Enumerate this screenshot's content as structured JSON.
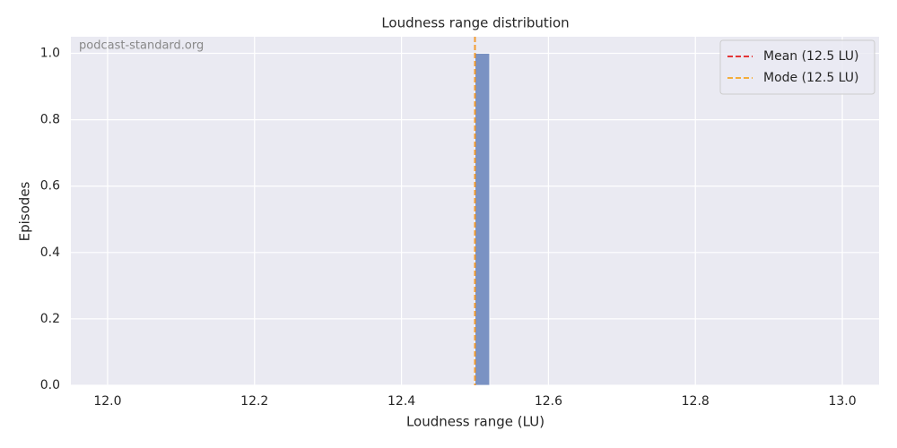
{
  "chart_data": {
    "type": "histogram",
    "title": "Loudness range distribution",
    "xlabel": "Loudness range (LU)",
    "ylabel": "Episodes",
    "watermark": "podcast-standard.org",
    "bins": [
      12.5,
      12.52
    ],
    "counts": [
      1
    ],
    "color": "#7a92c3",
    "xlim": [
      11.95,
      13.05
    ],
    "ylim": [
      0,
      1.05
    ],
    "xticks": [
      {
        "value": 12,
        "label": "12.0"
      },
      {
        "value": 12.2,
        "label": "12.2"
      },
      {
        "value": 12.4,
        "label": "12.4"
      },
      {
        "value": 12.6,
        "label": "12.6"
      },
      {
        "value": 12.8,
        "label": "12.8"
      },
      {
        "value": 13,
        "label": "13.0"
      }
    ],
    "yticks": [
      {
        "value": 0,
        "label": "0.0"
      },
      {
        "value": 0.2,
        "label": "0.2"
      },
      {
        "value": 0.4,
        "label": "0.4"
      },
      {
        "value": 0.6,
        "label": "0.6"
      },
      {
        "value": 0.8,
        "label": "0.8"
      },
      {
        "value": 1,
        "label": "1.0"
      }
    ],
    "lines": [
      {
        "name": "Mean (12.5 LU)",
        "value": 12.5,
        "color": "#e31a1c"
      },
      {
        "name": "Mode (12.5 LU)",
        "value": 12.5,
        "color": "#f5a623"
      }
    ],
    "grid": true,
    "legend": "upper right"
  }
}
